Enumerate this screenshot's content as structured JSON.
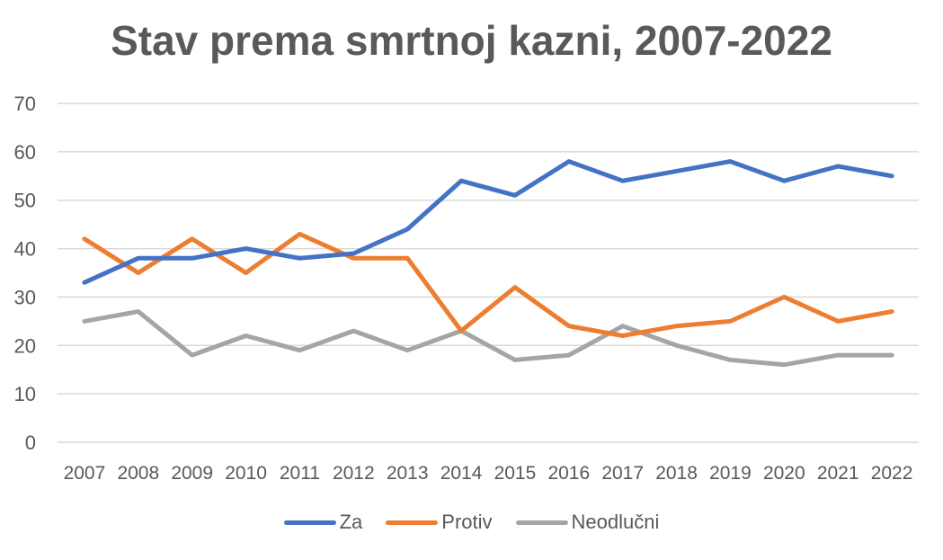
{
  "chart_data": {
    "type": "line",
    "title": "Stav prema smrtnoj kazni, 2007-2022",
    "xlabel": "",
    "ylabel": "",
    "ylim": [
      0,
      70
    ],
    "yticks": [
      0,
      10,
      20,
      30,
      40,
      50,
      60,
      70
    ],
    "grid": true,
    "legend_position": "bottom",
    "categories": [
      "2007",
      "2008",
      "2009",
      "2010",
      "2011",
      "2012",
      "2013",
      "2014",
      "2015",
      "2016",
      "2017",
      "2018",
      "2019",
      "2020",
      "2021",
      "2022"
    ],
    "series": [
      {
        "name": "Za",
        "color": "#4472C4",
        "values": [
          33,
          38,
          38,
          40,
          38,
          39,
          44,
          54,
          51,
          58,
          54,
          56,
          58,
          54,
          57,
          55
        ]
      },
      {
        "name": "Protiv",
        "color": "#ED7D31",
        "values": [
          42,
          35,
          42,
          35,
          43,
          38,
          38,
          23,
          32,
          24,
          22,
          24,
          25,
          30,
          25,
          27
        ]
      },
      {
        "name": "Neodlučni",
        "color": "#A5A5A5",
        "values": [
          25,
          27,
          18,
          22,
          19,
          23,
          19,
          23,
          17,
          18,
          24,
          20,
          17,
          16,
          18,
          18
        ]
      }
    ]
  }
}
